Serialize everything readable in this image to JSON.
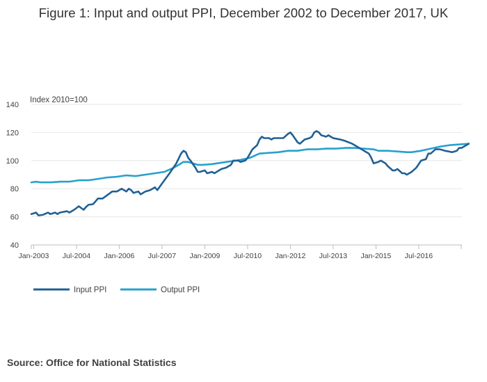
{
  "page": {
    "title": "Figure 1: Input and output PPI, December 2002 to December 2017, UK",
    "source": "Source: Office for National Statistics"
  },
  "colors": {
    "input": "#206095",
    "output": "#27a0cc",
    "grid": "#e6e6e6",
    "axis": "#bcbcbc",
    "text": "#414042"
  },
  "chart_data": {
    "type": "line",
    "title": "Figure 1: Input and output PPI, December 2002 to December 2017, UK",
    "ylabel": "Index 2010=100",
    "xlabel": "",
    "ylim": [
      40,
      140
    ],
    "yticks": [
      40,
      60,
      80,
      100,
      120,
      140
    ],
    "grid": true,
    "legend_position": "bottom-left",
    "x_start": "Dec-2002",
    "x_end": "Dec-2017",
    "xticks": [
      {
        "label": "Jan-2003",
        "index": 1
      },
      {
        "label": "Jul-2004",
        "index": 19
      },
      {
        "label": "Jan-2006",
        "index": 37
      },
      {
        "label": "Jul-2007",
        "index": 55
      },
      {
        "label": "Jan-2009",
        "index": 73
      },
      {
        "label": "Jul-2010",
        "index": 91
      },
      {
        "label": "Jan-2012",
        "index": 109
      },
      {
        "label": "Jul-2013",
        "index": 127
      },
      {
        "label": "Jan-2015",
        "index": 145
      },
      {
        "label": "Jul-2016",
        "index": 163
      }
    ],
    "anchors_note": "monthly values interpolated from anchor points [month index from Dec-2002, value]",
    "series": [
      {
        "name": "Input PPI",
        "color": "#206095",
        "anchors": [
          [
            0,
            62
          ],
          [
            2,
            63
          ],
          [
            3,
            61
          ],
          [
            5,
            61.5
          ],
          [
            7,
            63
          ],
          [
            8,
            62
          ],
          [
            10,
            63
          ],
          [
            11,
            62
          ],
          [
            12,
            63
          ],
          [
            15,
            64
          ],
          [
            16,
            63
          ],
          [
            18,
            65
          ],
          [
            20,
            67.5
          ],
          [
            22,
            65
          ],
          [
            23,
            67
          ],
          [
            24,
            68.5
          ],
          [
            26,
            69
          ],
          [
            28,
            73
          ],
          [
            30,
            73
          ],
          [
            34,
            78
          ],
          [
            36,
            78
          ],
          [
            38,
            80
          ],
          [
            40,
            78
          ],
          [
            41,
            80
          ],
          [
            42,
            79
          ],
          [
            43,
            77
          ],
          [
            45,
            78
          ],
          [
            46,
            76
          ],
          [
            48,
            78
          ],
          [
            50,
            79
          ],
          [
            52,
            81
          ],
          [
            53,
            79
          ],
          [
            56,
            86
          ],
          [
            59,
            93
          ],
          [
            61,
            98
          ],
          [
            63,
            105
          ],
          [
            64,
            107
          ],
          [
            65,
            106
          ],
          [
            66,
            102
          ],
          [
            67,
            100
          ],
          [
            69,
            95
          ],
          [
            70,
            92
          ],
          [
            71,
            92
          ],
          [
            73,
            93
          ],
          [
            74,
            91
          ],
          [
            76,
            92
          ],
          [
            77,
            91
          ],
          [
            79,
            93
          ],
          [
            80,
            94
          ],
          [
            82,
            95
          ],
          [
            84,
            97
          ],
          [
            85,
            100
          ],
          [
            87,
            100
          ],
          [
            88,
            99
          ],
          [
            90,
            100
          ],
          [
            91,
            102
          ],
          [
            93,
            108
          ],
          [
            95,
            111
          ],
          [
            96,
            115
          ],
          [
            97,
            117
          ],
          [
            98,
            116
          ],
          [
            100,
            116
          ],
          [
            101,
            115
          ],
          [
            102,
            116
          ],
          [
            105,
            116
          ],
          [
            106,
            116
          ],
          [
            108,
            119
          ],
          [
            109,
            120
          ],
          [
            110,
            118
          ],
          [
            112,
            113
          ],
          [
            113,
            112
          ],
          [
            115,
            115
          ],
          [
            117,
            116
          ],
          [
            118,
            117
          ],
          [
            119,
            120
          ],
          [
            120,
            121
          ],
          [
            121,
            120
          ],
          [
            122,
            118
          ],
          [
            124,
            117
          ],
          [
            125,
            118
          ],
          [
            127,
            116
          ],
          [
            130,
            115
          ],
          [
            132,
            114
          ],
          [
            135,
            112
          ],
          [
            137,
            110
          ],
          [
            139,
            108
          ],
          [
            142,
            105
          ],
          [
            143,
            102
          ],
          [
            144,
            98
          ],
          [
            146,
            99
          ],
          [
            147,
            100
          ],
          [
            149,
            98
          ],
          [
            150,
            96
          ],
          [
            152,
            93
          ],
          [
            153,
            93
          ],
          [
            154,
            94
          ],
          [
            156,
            91
          ],
          [
            157,
            91
          ],
          [
            158,
            90
          ],
          [
            160,
            92
          ],
          [
            162,
            95
          ],
          [
            164,
            100
          ],
          [
            166,
            101
          ],
          [
            167,
            105
          ],
          [
            168,
            105
          ],
          [
            170,
            108
          ],
          [
            172,
            108
          ],
          [
            174,
            107
          ],
          [
            177,
            106
          ],
          [
            179,
            107
          ],
          [
            180,
            109
          ],
          [
            181,
            109
          ],
          [
            182,
            110
          ],
          [
            183,
            111
          ],
          [
            184,
            112
          ]
        ]
      },
      {
        "name": "Output PPI",
        "color": "#27a0cc",
        "anchors": [
          [
            0,
            84.5
          ],
          [
            2,
            85
          ],
          [
            4,
            84.5
          ],
          [
            8,
            84.5
          ],
          [
            12,
            85
          ],
          [
            16,
            85
          ],
          [
            20,
            86
          ],
          [
            24,
            86
          ],
          [
            28,
            87
          ],
          [
            32,
            88
          ],
          [
            36,
            88.5
          ],
          [
            40,
            89.5
          ],
          [
            44,
            89
          ],
          [
            48,
            90
          ],
          [
            52,
            91
          ],
          [
            56,
            92
          ],
          [
            60,
            95
          ],
          [
            62,
            97
          ],
          [
            64,
            99
          ],
          [
            66,
            99
          ],
          [
            68,
            98
          ],
          [
            70,
            97
          ],
          [
            72,
            97
          ],
          [
            76,
            97.5
          ],
          [
            80,
            98.5
          ],
          [
            84,
            99.5
          ],
          [
            88,
            100.5
          ],
          [
            92,
            102
          ],
          [
            96,
            105
          ],
          [
            100,
            105.5
          ],
          [
            104,
            106
          ],
          [
            108,
            107
          ],
          [
            112,
            107
          ],
          [
            116,
            108
          ],
          [
            120,
            108
          ],
          [
            124,
            108.5
          ],
          [
            128,
            108.5
          ],
          [
            132,
            109
          ],
          [
            136,
            109
          ],
          [
            140,
            108.5
          ],
          [
            144,
            108
          ],
          [
            146,
            107
          ],
          [
            150,
            107
          ],
          [
            154,
            106.5
          ],
          [
            158,
            106
          ],
          [
            160,
            106
          ],
          [
            164,
            107
          ],
          [
            168,
            108.5
          ],
          [
            172,
            110
          ],
          [
            176,
            111
          ],
          [
            180,
            111.5
          ],
          [
            184,
            112
          ]
        ]
      }
    ]
  }
}
